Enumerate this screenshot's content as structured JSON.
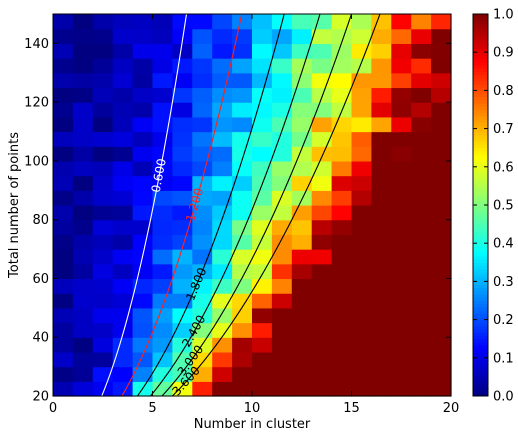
{
  "chart_data": {
    "type": "heatmap",
    "title": "",
    "xlabel": "Number in cluster",
    "ylabel": "Total number of points",
    "xlim": [
      0,
      20
    ],
    "ylim": [
      20,
      150
    ],
    "xticks": [
      0,
      5,
      10,
      15,
      20
    ],
    "yticks": [
      20,
      40,
      60,
      80,
      100,
      120,
      140
    ],
    "cell_width": 1,
    "cell_height": 5,
    "colorbar": {
      "colormap": "jet",
      "ticks": [
        0.0,
        0.1,
        0.2,
        0.3,
        0.4,
        0.5,
        0.6,
        0.7,
        0.8,
        0.9,
        1.0
      ],
      "tick_labels": [
        "0.0",
        "0.1",
        "0.2",
        "0.3",
        "0.4",
        "0.5",
        "0.6",
        "0.7",
        "0.8",
        "0.9",
        "1.0"
      ]
    },
    "value_model": "value = 0.35 * (n^2 / N) * (1 + noise), clipped to [0,1]",
    "contours": [
      {
        "level": 0.6,
        "label": "0.600",
        "color": "#ffffff"
      },
      {
        "level": 1.2,
        "label": "1.200",
        "color": "#ff2020"
      },
      {
        "level": 1.8,
        "label": "1.800",
        "color": "#000000"
      },
      {
        "level": 2.4,
        "label": "2.400",
        "color": "#000000"
      },
      {
        "level": 3.0,
        "label": "3.000",
        "color": "#000000"
      },
      {
        "level": 3.6,
        "label": "3.600",
        "color": "#000000"
      }
    ],
    "contour_formula": "N = n^2 / (k * level), k = 0.5"
  }
}
